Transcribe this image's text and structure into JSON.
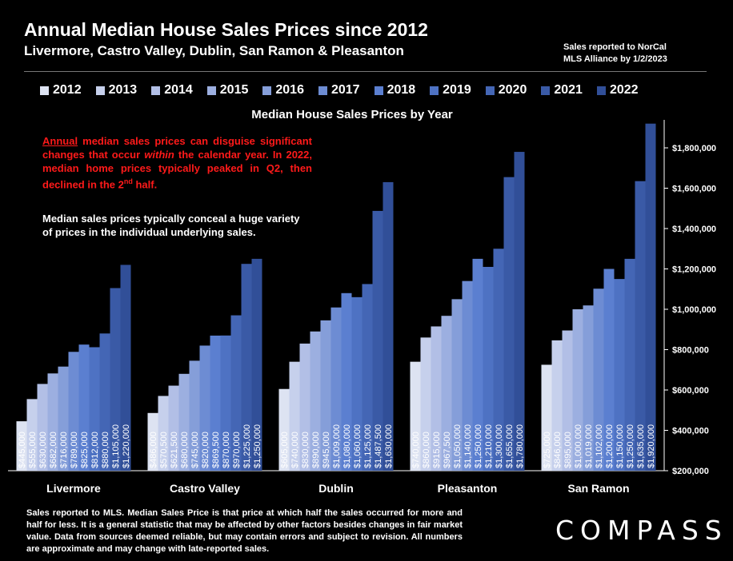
{
  "header": {
    "title": "Annual Median House Sales Prices since 2012",
    "subtitle": "Livermore, Castro Valley, Dublin, San Ramon & Pleasanton",
    "source_line1": "Sales reported to NorCal",
    "source_line2": "MLS Alliance by 1/2/2023"
  },
  "notes": {
    "note1_underlined": "Annual",
    "note1_a": " median sales prices can disguise significant changes that occur ",
    "note1_italic": "within",
    "note1_b": " the calendar year. In 2022, median home prices typically peaked in Q2, then declined in the 2",
    "note1_sup": "nd",
    "note1_c": " half.",
    "note2": "Median sales prices typically conceal a huge variety of prices in the individual underlying sales."
  },
  "footer": "Sales reported to MLS. Median Sales Price is that price at which half the sales occurred for more and half for less. It is a general statistic that may be affected by other factors besides changes in fair market value. Data from sources deemed reliable, but may contain errors and subject to revision. All numbers are approximate and may change with late-reported sales.",
  "logo": "COMPASS",
  "colors": {
    "series": [
      "#dde3f2",
      "#c6d0ec",
      "#b2bfe6",
      "#9cafe0",
      "#859ed9",
      "#6d8cd3",
      "#5b7fd0",
      "#4e72c3",
      "#4466b5",
      "#3a5aa6",
      "#314f98"
    ]
  },
  "chart_data": {
    "type": "bar",
    "title": "Median House Sales Prices by Year",
    "categories": [
      "Livermore",
      "Castro Valley",
      "Dublin",
      "Pleasanton",
      "San Ramon"
    ],
    "series": [
      {
        "name": "2012",
        "values": [
          445000,
          486000,
          605000,
          740000,
          725000
        ],
        "labels": [
          "$445,000",
          "$486,000",
          "$605,000",
          "$740,000",
          "$725,000"
        ]
      },
      {
        "name": "2013",
        "values": [
          555000,
          570500,
          740000,
          860000,
          846000
        ],
        "labels": [
          "$555,000",
          "$570,500",
          "$740,000",
          "$860,000",
          "$846,000"
        ]
      },
      {
        "name": "2014",
        "values": [
          630000,
          621500,
          830000,
          915000,
          895000
        ],
        "labels": [
          "$630,000",
          "$621,500",
          "$830,000",
          "$915,000",
          "$895,000"
        ]
      },
      {
        "name": "2015",
        "values": [
          682000,
          680000,
          890000,
          967500,
          1000000
        ],
        "labels": [
          "$682,000",
          "$680,000",
          "$890,000",
          "$967,500",
          "$1,000,000"
        ]
      },
      {
        "name": "2016",
        "values": [
          716000,
          745000,
          945000,
          1050000,
          1019000
        ],
        "labels": [
          "$716,000",
          "$745,000",
          "$945,000",
          "$1,050,000",
          "$1,019,000"
        ]
      },
      {
        "name": "2017",
        "values": [
          789000,
          820000,
          1009000,
          1140000,
          1102000
        ],
        "labels": [
          "$789,000",
          "$820,000",
          "$1,009,000",
          "$1,140,000",
          "$1,102,000"
        ]
      },
      {
        "name": "2018",
        "values": [
          825000,
          869500,
          1080000,
          1250000,
          1200000
        ],
        "labels": [
          "$825,000",
          "$869,500",
          "$1,080,000",
          "$1,250,000",
          "$1,200,000"
        ]
      },
      {
        "name": "2019",
        "values": [
          812000,
          870000,
          1060000,
          1210000,
          1150000
        ],
        "labels": [
          "$812,000",
          "$870,000",
          "$1,060,000",
          "$1,210,000",
          "$1,150,000"
        ]
      },
      {
        "name": "2020",
        "values": [
          880000,
          970000,
          1125000,
          1300000,
          1250000
        ],
        "labels": [
          "$880,000",
          "$970,000",
          "$1,125,000",
          "$1,300,000",
          "$1,250,000"
        ]
      },
      {
        "name": "2021",
        "values": [
          1105000,
          1225000,
          1487500,
          1655000,
          1635000
        ],
        "labels": [
          "$1,105,000",
          "$1,225,000",
          "$1,487,500",
          "$1,655,000",
          "$1,635,000"
        ]
      },
      {
        "name": "2022",
        "values": [
          1220000,
          1250000,
          1630000,
          1780000,
          1920000
        ],
        "labels": [
          "$1,220,000",
          "$1,250,000",
          "$1,630,000",
          "$1,780,000",
          "$1,920,000"
        ]
      }
    ],
    "y_ticks": [
      "$200,000",
      "$400,000",
      "$600,000",
      "$800,000",
      "$1,000,000",
      "$1,200,000",
      "$1,400,000",
      "$1,600,000",
      "$1,800,000"
    ],
    "y_tick_values": [
      200000,
      400000,
      600000,
      800000,
      1000000,
      1200000,
      1400000,
      1600000,
      1800000
    ],
    "ylim": [
      200000,
      1960000
    ],
    "y_axis_side": "right",
    "grid": false,
    "legend": "top"
  }
}
